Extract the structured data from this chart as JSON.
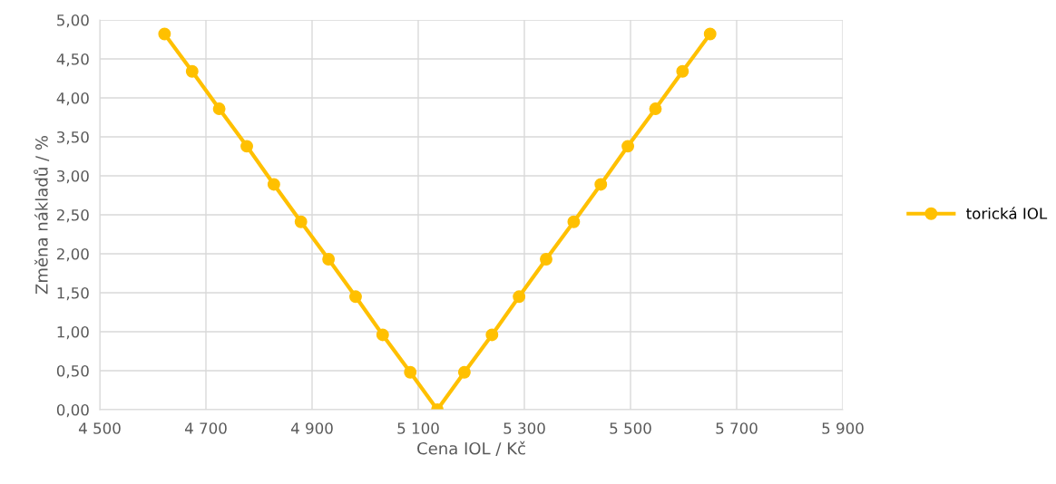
{
  "chart_data": {
    "type": "line",
    "xlabel": "Cena IOL / Kč",
    "ylabel": "Změna nákladů / %",
    "series": [
      {
        "name": "torická IOL",
        "color": "#ffc000",
        "x": [
          4622,
          4674,
          4725,
          4777,
          4828,
          4879,
          4931,
          4982,
          5033,
          5085,
          5136,
          5187,
          5239,
          5290,
          5341,
          5393,
          5444,
          5495,
          5547,
          5598,
          5650
        ],
        "values": [
          4.82,
          4.34,
          3.86,
          3.38,
          2.89,
          2.41,
          1.93,
          1.45,
          0.96,
          0.48,
          0,
          0.48,
          0.96,
          1.45,
          1.93,
          2.41,
          2.89,
          3.38,
          3.86,
          4.34,
          4.82
        ]
      }
    ],
    "xlim": [
      4500,
      5900
    ],
    "xticks": [
      {
        "value": 4500,
        "label": "4 500"
      },
      {
        "value": 4700,
        "label": "4 700"
      },
      {
        "value": 4900,
        "label": "4 900"
      },
      {
        "value": 5100,
        "label": "5 100"
      },
      {
        "value": 5300,
        "label": "5 300"
      },
      {
        "value": 5500,
        "label": "5 500"
      },
      {
        "value": 5700,
        "label": "5 700"
      },
      {
        "value": 5900,
        "label": "5 900"
      }
    ],
    "ylim": [
      0,
      5
    ],
    "yticks": [
      {
        "value": 0,
        "label": "0,00"
      },
      {
        "value": 0.5,
        "label": "0,50"
      },
      {
        "value": 1,
        "label": "1,00"
      },
      {
        "value": 1.5,
        "label": "1,50"
      },
      {
        "value": 2,
        "label": "2,00"
      },
      {
        "value": 2.5,
        "label": "2,50"
      },
      {
        "value": 3,
        "label": "3,00"
      },
      {
        "value": 3.5,
        "label": "3,50"
      },
      {
        "value": 4,
        "label": "4,00"
      },
      {
        "value": 4.5,
        "label": "4,50"
      },
      {
        "value": 5,
        "label": "5,00"
      }
    ],
    "grid": true,
    "legend": "right",
    "marker": "circle",
    "line_style": "solid"
  }
}
